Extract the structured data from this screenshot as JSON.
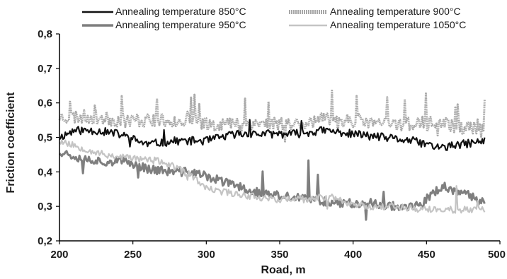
{
  "chart_data": {
    "type": "line",
    "xlabel": "Road, m",
    "ylabel": "Friction coefficient",
    "xlim": [
      200,
      500
    ],
    "ylim": [
      0.2,
      0.8
    ],
    "x_ticks": [
      200,
      250,
      300,
      350,
      400,
      450,
      500
    ],
    "y_ticks": [
      0.2,
      0.3,
      0.4,
      0.5,
      0.6,
      0.7,
      0.8
    ],
    "x_tick_labels": [
      "200",
      "250",
      "300",
      "350",
      "400",
      "450",
      "500"
    ],
    "y_tick_labels": [
      "0,2",
      "0,3",
      "0,4",
      "0,5",
      "0,6",
      "0,7",
      "0,8"
    ],
    "grid": false,
    "legend_position": "top",
    "series": [
      {
        "name": "Annealing temperature 850°C",
        "color": "#111111",
        "x_range": [
          200,
          490
        ],
        "points": [
          [
            200,
            0.5
          ],
          [
            210,
            0.52
          ],
          [
            225,
            0.52
          ],
          [
            240,
            0.51
          ],
          [
            260,
            0.48
          ],
          [
            280,
            0.49
          ],
          [
            300,
            0.49
          ],
          [
            320,
            0.51
          ],
          [
            340,
            0.51
          ],
          [
            360,
            0.51
          ],
          [
            380,
            0.52
          ],
          [
            400,
            0.51
          ],
          [
            420,
            0.5
          ],
          [
            440,
            0.49
          ],
          [
            460,
            0.47
          ],
          [
            475,
            0.48
          ],
          [
            490,
            0.49
          ]
        ]
      },
      {
        "name": "Annealing temperature 900°C",
        "color": "#a8a8a8",
        "x_range": [
          200,
          490
        ],
        "points": [
          [
            200,
            0.56
          ],
          [
            220,
            0.56
          ],
          [
            240,
            0.55
          ],
          [
            260,
            0.55
          ],
          [
            280,
            0.55
          ],
          [
            300,
            0.54
          ],
          [
            320,
            0.54
          ],
          [
            340,
            0.54
          ],
          [
            360,
            0.54
          ],
          [
            380,
            0.55
          ],
          [
            400,
            0.55
          ],
          [
            420,
            0.54
          ],
          [
            440,
            0.54
          ],
          [
            460,
            0.54
          ],
          [
            475,
            0.53
          ],
          [
            490,
            0.52
          ]
        ]
      },
      {
        "name": "Annealing temperature 950°C",
        "color": "#7f7f7f",
        "x_range": [
          200,
          490
        ],
        "points": [
          [
            200,
            0.46
          ],
          [
            215,
            0.44
          ],
          [
            230,
            0.43
          ],
          [
            245,
            0.43
          ],
          [
            260,
            0.41
          ],
          [
            275,
            0.4
          ],
          [
            290,
            0.4
          ],
          [
            305,
            0.38
          ],
          [
            320,
            0.36
          ],
          [
            335,
            0.34
          ],
          [
            350,
            0.33
          ],
          [
            370,
            0.32
          ],
          [
            390,
            0.31
          ],
          [
            410,
            0.31
          ],
          [
            430,
            0.3
          ],
          [
            445,
            0.3
          ],
          [
            455,
            0.34
          ],
          [
            462,
            0.36
          ],
          [
            470,
            0.34
          ],
          [
            480,
            0.33
          ],
          [
            490,
            0.31
          ]
        ]
      },
      {
        "name": "Annealing temperature 1050°C",
        "color": "#c4c4c4",
        "x_range": [
          200,
          490
        ],
        "points": [
          [
            200,
            0.49
          ],
          [
            215,
            0.47
          ],
          [
            230,
            0.45
          ],
          [
            250,
            0.44
          ],
          [
            270,
            0.43
          ],
          [
            290,
            0.39
          ],
          [
            300,
            0.35
          ],
          [
            315,
            0.34
          ],
          [
            330,
            0.33
          ],
          [
            350,
            0.32
          ],
          [
            370,
            0.32
          ],
          [
            385,
            0.33
          ],
          [
            395,
            0.31
          ],
          [
            410,
            0.3
          ],
          [
            430,
            0.3
          ],
          [
            450,
            0.29
          ],
          [
            465,
            0.29
          ],
          [
            490,
            0.29
          ]
        ]
      }
    ]
  }
}
